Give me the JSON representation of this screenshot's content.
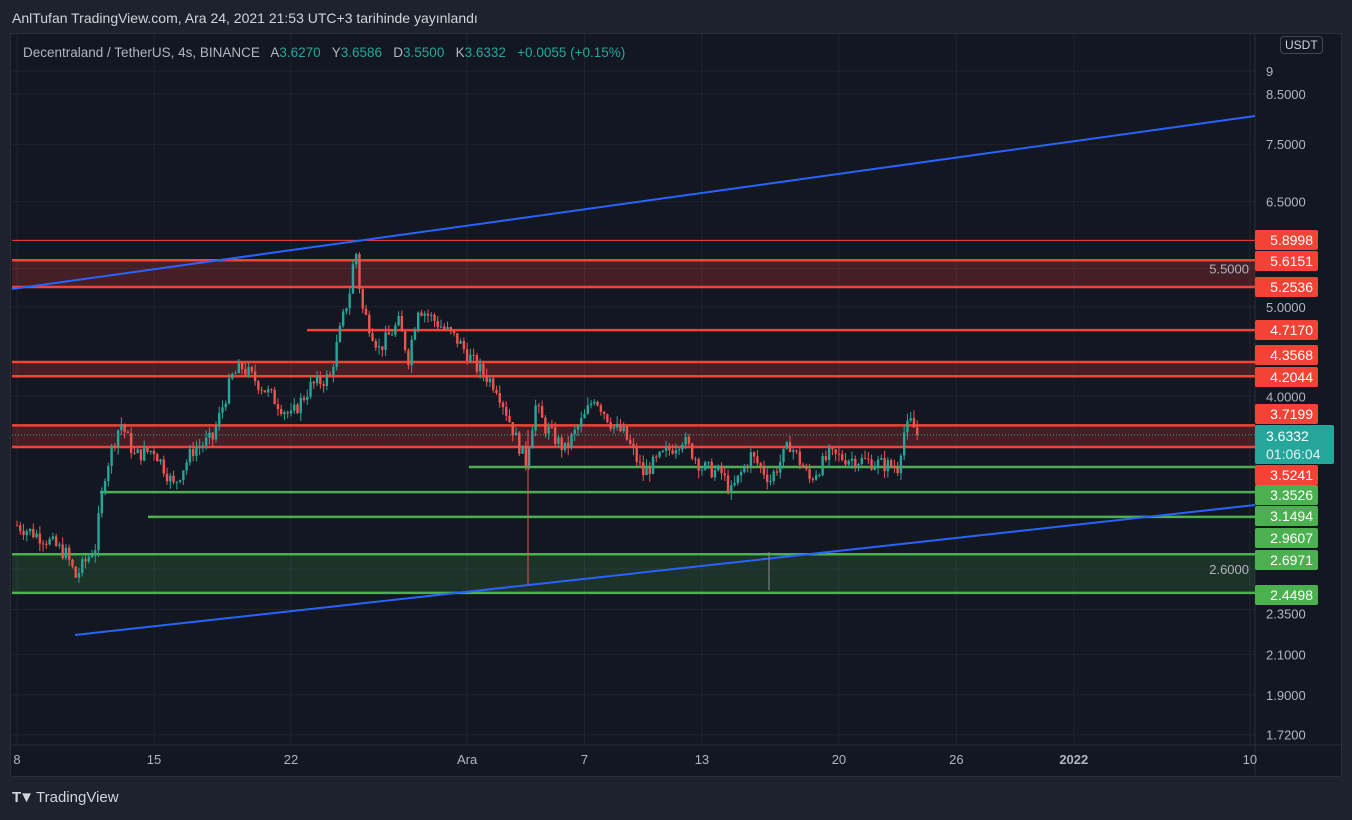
{
  "header": {
    "title": "AnlTufan TradingView.com, Ara 24, 2021 21:53 UTC+3 tarihinde yayınlandı"
  },
  "legend": {
    "symbol": "Decentraland / TetherUS, 4s, BINANCE",
    "o_label": "A",
    "o": "3.6270",
    "h_label": "Y",
    "h": "3.6586",
    "l_label": "D",
    "l": "3.5500",
    "c_label": "K",
    "c": "3.6332",
    "change": "+0.0055 (+0.15%)"
  },
  "currency": "USDT",
  "footer": {
    "brand": "TradingView",
    "logo_icon": "tv-logo-icon"
  },
  "colors": {
    "bg": "#131722",
    "up": "#26a69a",
    "down": "#ef5350",
    "red_level": "#f44336",
    "green_level": "#4caf50",
    "trend": "#2962ff"
  },
  "chart_data": {
    "type": "candlestick",
    "scale": "log",
    "y_ticks": [
      "9",
      "8.5000",
      "7.5000",
      "6.5000",
      "5.5000",
      "5.0000",
      "4.0000",
      "2.6000",
      "2.3500",
      "2.1000",
      "1.9000",
      "1.7200"
    ],
    "y_tick_values": [
      9,
      8.5,
      7.5,
      6.5,
      5.5,
      5.0,
      4.0,
      2.6,
      2.35,
      2.1,
      1.9,
      1.72
    ],
    "x_ticks": [
      "8",
      "15",
      "22",
      "Ara",
      "7",
      "13",
      "20",
      "26",
      "2022",
      "10"
    ],
    "x_tick_days": [
      0,
      7,
      14,
      23,
      29,
      35,
      42,
      48,
      54,
      63
    ],
    "x_tick_bold": [
      false,
      false,
      false,
      false,
      false,
      false,
      false,
      false,
      true,
      false
    ],
    "close_path_days_prices": [
      [
        0,
        2.9
      ],
      [
        1.5,
        2.8
      ],
      [
        2.5,
        2.7
      ],
      [
        3,
        2.55
      ],
      [
        4,
        2.75
      ],
      [
        4.5,
        3.3
      ],
      [
        5,
        3.6
      ],
      [
        5.3,
        3.75
      ],
      [
        6,
        3.45
      ],
      [
        7,
        3.5
      ],
      [
        8,
        3.2
      ],
      [
        9,
        3.5
      ],
      [
        10,
        3.6
      ],
      [
        11,
        4.2
      ],
      [
        11.5,
        4.3
      ],
      [
        12.5,
        4.1
      ],
      [
        14,
        3.8
      ],
      [
        15,
        4.1
      ],
      [
        16,
        4.2
      ],
      [
        16.5,
        4.7
      ],
      [
        17,
        5.2
      ],
      [
        17.3,
        5.8
      ],
      [
        17.6,
        5.0
      ],
      [
        18.5,
        4.5
      ],
      [
        19.5,
        4.8
      ],
      [
        20,
        4.4
      ],
      [
        20.5,
        5.0
      ],
      [
        21.5,
        4.8
      ],
      [
        22.5,
        4.6
      ],
      [
        23.5,
        4.3
      ],
      [
        24.5,
        4.1
      ],
      [
        25.5,
        3.6
      ],
      [
        26,
        3.4
      ],
      [
        26.5,
        3.9
      ],
      [
        27,
        3.7
      ],
      [
        28,
        3.5
      ],
      [
        29,
        3.8
      ],
      [
        29.5,
        4.0
      ],
      [
        30.5,
        3.7
      ],
      [
        31,
        3.65
      ],
      [
        32,
        3.3
      ],
      [
        33,
        3.45
      ],
      [
        34,
        3.6
      ],
      [
        35,
        3.35
      ],
      [
        36,
        3.3
      ],
      [
        36.5,
        3.15
      ],
      [
        37.5,
        3.45
      ],
      [
        38.5,
        3.25
      ],
      [
        39.5,
        3.55
      ],
      [
        40.5,
        3.25
      ],
      [
        41.5,
        3.45
      ],
      [
        43.5,
        3.4
      ],
      [
        45,
        3.35
      ],
      [
        45.3,
        3.65
      ],
      [
        45.7,
        3.75
      ],
      [
        46,
        3.6332
      ]
    ],
    "levels": [
      {
        "price": 5.8998,
        "label": "5.8998",
        "color": "red"
      },
      {
        "price": 5.6151,
        "label": "5.6151",
        "color": "red"
      },
      {
        "price": 5.2536,
        "label": "5.2536",
        "color": "red"
      },
      {
        "price": 4.717,
        "label": "4.7170",
        "color": "red"
      },
      {
        "price": 4.3568,
        "label": "4.3568",
        "color": "red"
      },
      {
        "price": 4.2044,
        "label": "4.2044",
        "color": "red"
      },
      {
        "price": 3.7199,
        "label": "3.7199",
        "color": "red"
      },
      {
        "price": 3.5241,
        "label": "3.5241",
        "color": "red"
      },
      {
        "price": 3.3526,
        "label": "3.3526",
        "color": "green"
      },
      {
        "price": 3.1494,
        "label": "3.1494",
        "color": "green"
      },
      {
        "price": 2.9607,
        "label": "2.9607",
        "color": "green"
      },
      {
        "price": 2.6971,
        "label": "2.6971",
        "color": "green"
      },
      {
        "price": 2.4498,
        "label": "2.4498",
        "color": "green"
      }
    ],
    "zones": [
      [
        5.2536,
        5.6151,
        "red"
      ],
      [
        4.2044,
        4.3568,
        "red"
      ],
      [
        3.5241,
        3.7199,
        "red"
      ],
      [
        2.4498,
        2.6971,
        "green"
      ]
    ],
    "last_price": {
      "label": "3.6332",
      "countdown": "01:06:04"
    }
  }
}
